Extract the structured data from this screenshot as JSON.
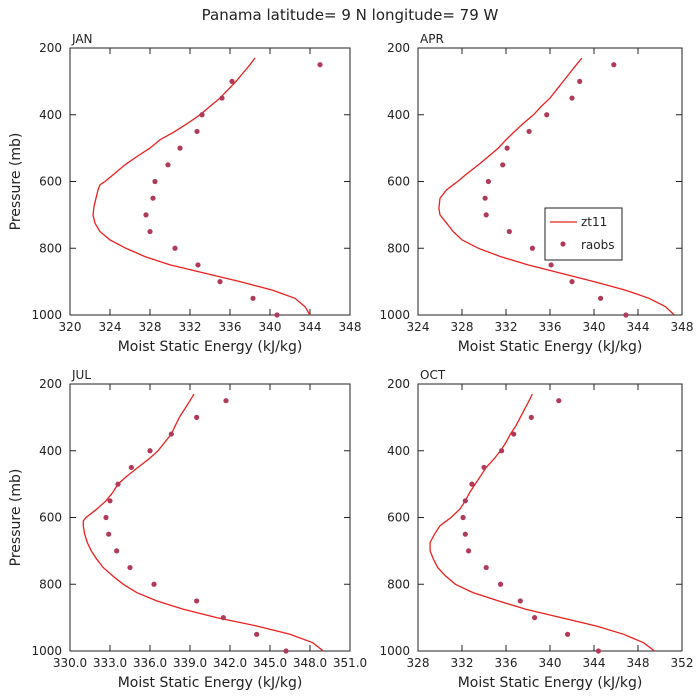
{
  "title": "Panama  latitude= 9 N longitude= 79 W",
  "colors": {
    "model": "#e8201e",
    "obs": "#b03a5a",
    "axis": "#222222"
  },
  "chart_data": [
    {
      "type": "line",
      "panel": "JAN",
      "xlabel": "Moist Static Energy (kJ/kg)",
      "ylabel": "Pressure (mb)",
      "xlim": [
        320,
        348
      ],
      "ylim": [
        1000,
        200
      ],
      "x_ticks": [
        320,
        324,
        328,
        332,
        336,
        340,
        344,
        348
      ],
      "x_tick_labels": [
        "320",
        "324",
        "328",
        "332",
        "336",
        "340",
        "344",
        "348"
      ],
      "y_ticks": [
        200,
        400,
        600,
        800,
        1000
      ],
      "y_tick_labels": [
        "200",
        "400",
        "600",
        "800",
        "1000"
      ],
      "legend": null,
      "series": [
        {
          "name": "zt11",
          "style": "line",
          "pressure": [
            1000,
            975,
            950,
            925,
            900,
            875,
            850,
            825,
            800,
            775,
            750,
            725,
            700,
            675,
            650,
            625,
            610,
            600,
            575,
            550,
            525,
            500,
            475,
            450,
            425,
            400,
            375,
            350,
            325,
            300,
            275,
            250,
            230
          ],
          "values": [
            344,
            343.5,
            342.5,
            340.2,
            337,
            333.5,
            330,
            327.5,
            325.6,
            324,
            323,
            322.5,
            322.3,
            322.4,
            322.6,
            322.8,
            323,
            323.5,
            324.5,
            325.5,
            326.7,
            328,
            329,
            330.5,
            331.8,
            333,
            334,
            335,
            335.8,
            336.6,
            337.3,
            338,
            338.5
          ]
        },
        {
          "name": "raobs",
          "style": "dots",
          "pressure": [
            250,
            300,
            350,
            400,
            450,
            500,
            550,
            600,
            650,
            700,
            750,
            800,
            850,
            900,
            950,
            1000
          ],
          "values": [
            345,
            336.2,
            335.2,
            333.2,
            332.7,
            331,
            329.8,
            328.5,
            328.3,
            327.6,
            328,
            330.5,
            332.8,
            335,
            338.3,
            340.7
          ]
        }
      ]
    },
    {
      "type": "line",
      "panel": "APR",
      "xlabel": "Moist Static Energy (kJ/kg)",
      "ylabel": "",
      "xlim": [
        324,
        348
      ],
      "ylim": [
        1000,
        200
      ],
      "x_ticks": [
        324,
        328,
        332,
        336,
        340,
        344,
        348
      ],
      "x_tick_labels": [
        "324",
        "328",
        "332",
        "336",
        "340",
        "344",
        "348"
      ],
      "y_ticks": [
        200,
        400,
        600,
        800,
        1000
      ],
      "y_tick_labels": [
        "200",
        "400",
        "600",
        "800",
        "1000"
      ],
      "legend": {
        "placement": "right-middle",
        "entries": [
          "zt11",
          "raobs"
        ]
      },
      "series": [
        {
          "name": "zt11",
          "style": "line",
          "pressure": [
            1000,
            975,
            950,
            925,
            900,
            875,
            850,
            825,
            800,
            775,
            750,
            725,
            700,
            680,
            650,
            625,
            610,
            600,
            575,
            550,
            525,
            500,
            475,
            450,
            425,
            400,
            375,
            350,
            325,
            300,
            275,
            250,
            230
          ],
          "values": [
            347.3,
            346.5,
            345,
            342.8,
            340,
            337,
            334,
            331.5,
            329.5,
            328,
            327.2,
            326.6,
            326,
            325.9,
            326,
            326.6,
            327.2,
            327.6,
            328.5,
            329.5,
            330.4,
            331.3,
            332,
            332.8,
            333.6,
            334.5,
            335.2,
            336,
            336.6,
            337.2,
            337.8,
            338.4,
            338.9
          ]
        },
        {
          "name": "raobs",
          "style": "dots",
          "pressure": [
            250,
            300,
            350,
            400,
            450,
            500,
            550,
            600,
            650,
            700,
            750,
            800,
            850,
            900,
            950,
            1000
          ],
          "values": [
            341.8,
            338.7,
            338,
            335.7,
            334.1,
            332.1,
            331.7,
            330.4,
            330.1,
            330.2,
            332.3,
            334.4,
            336.1,
            338,
            340.6,
            342.9
          ]
        }
      ]
    },
    {
      "type": "line",
      "panel": "JUL",
      "xlabel": "Moist Static Energy (kJ/kg)",
      "ylabel": "Pressure (mb)",
      "xlim": [
        330.0,
        351.0
      ],
      "ylim": [
        1000,
        200
      ],
      "x_ticks": [
        330.0,
        333.0,
        336.0,
        339.0,
        342.0,
        345.0,
        348.0,
        351.0
      ],
      "x_tick_labels": [
        "330.0",
        "333.0",
        "336.0",
        "339.0",
        "342.0",
        "345.0",
        "348.0",
        "351.0"
      ],
      "y_ticks": [
        200,
        400,
        600,
        800,
        1000
      ],
      "y_tick_labels": [
        "200",
        "400",
        "600",
        "800",
        "1000"
      ],
      "legend": null,
      "series": [
        {
          "name": "zt11",
          "style": "line",
          "pressure": [
            1000,
            975,
            950,
            925,
            900,
            875,
            850,
            825,
            800,
            775,
            750,
            725,
            700,
            675,
            650,
            625,
            610,
            600,
            575,
            550,
            525,
            500,
            475,
            450,
            425,
            400,
            375,
            350,
            325,
            300,
            275,
            250,
            230
          ],
          "values": [
            349,
            348.2,
            346.5,
            344,
            341,
            338.5,
            336.5,
            335,
            334,
            333.2,
            332.5,
            332,
            331.6,
            331.3,
            331.1,
            331,
            331,
            331.2,
            332,
            332.7,
            333.2,
            333.6,
            334.3,
            335.1,
            335.9,
            336.6,
            337.1,
            337.6,
            337.9,
            338.2,
            338.6,
            339,
            339.3
          ]
        },
        {
          "name": "raobs",
          "style": "dots",
          "pressure": [
            250,
            300,
            350,
            400,
            450,
            500,
            550,
            600,
            650,
            700,
            750,
            800,
            850,
            900,
            950,
            1000
          ],
          "values": [
            341.7,
            339.5,
            337.6,
            336,
            334.6,
            333.6,
            333,
            332.7,
            332.9,
            333.5,
            334.5,
            336.3,
            339.5,
            341.5,
            344,
            346.2
          ]
        }
      ]
    },
    {
      "type": "line",
      "panel": "OCT",
      "xlabel": "Moist Static Energy (kJ/kg)",
      "ylabel": "",
      "xlim": [
        328,
        352
      ],
      "ylim": [
        1000,
        200
      ],
      "x_ticks": [
        328,
        332,
        336,
        340,
        344,
        348,
        352
      ],
      "x_tick_labels": [
        "328",
        "332",
        "336",
        "340",
        "344",
        "348",
        "352"
      ],
      "y_ticks": [
        200,
        400,
        600,
        800,
        1000
      ],
      "y_tick_labels": [
        "200",
        "400",
        "600",
        "800",
        "1000"
      ],
      "legend": null,
      "series": [
        {
          "name": "zt11",
          "style": "line",
          "pressure": [
            1000,
            975,
            950,
            925,
            900,
            875,
            850,
            825,
            800,
            775,
            750,
            725,
            700,
            675,
            650,
            625,
            610,
            600,
            575,
            550,
            525,
            500,
            475,
            450,
            425,
            400,
            375,
            350,
            325,
            300,
            275,
            250,
            230
          ],
          "values": [
            349.5,
            348.5,
            346.7,
            344.2,
            341,
            337.8,
            335.3,
            333,
            331.4,
            330.5,
            329.8,
            329.4,
            329.1,
            329.1,
            329.5,
            330,
            330.6,
            331,
            331.8,
            332.3,
            332.7,
            333.2,
            333.7,
            334.2,
            334.9,
            335.5,
            336,
            336.4,
            336.9,
            337.3,
            337.7,
            338.1,
            338.4
          ]
        },
        {
          "name": "raobs",
          "style": "dots",
          "pressure": [
            250,
            300,
            350,
            400,
            450,
            500,
            550,
            600,
            650,
            700,
            750,
            800,
            850,
            900,
            950,
            1000
          ],
          "values": [
            340.8,
            338.3,
            336.7,
            335.6,
            334,
            332.9,
            332.3,
            332.1,
            332.3,
            332.6,
            334.2,
            335.5,
            337.3,
            338.6,
            341.6,
            344.4
          ]
        }
      ]
    }
  ]
}
